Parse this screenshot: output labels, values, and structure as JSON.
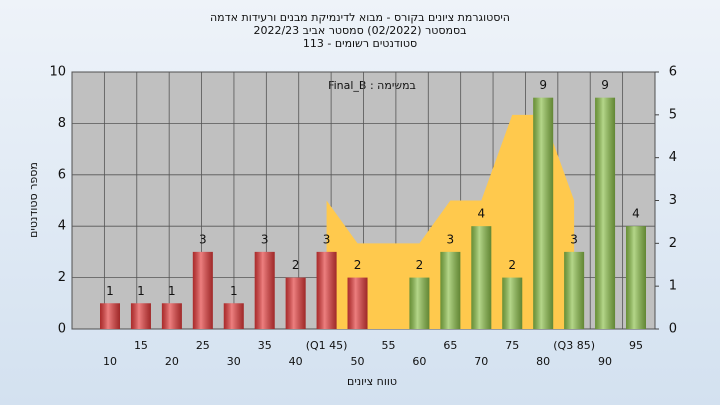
{
  "chart_data": {
    "type": "bar",
    "title": "היסטוגרמת ציונים בקורס - מבוא לדינמיקת מבנים ורעידות אדמה",
    "subtitle": [
      "בסמסטר  (02/2022)  סמסטר אביב 2022/23",
      "סטודנטים רשומים - 113"
    ],
    "annotation": "Final_B : במשימה",
    "x_label": "טווח ציונים",
    "y_label": "מספר סטודנטים",
    "categories": [
      "10",
      "15",
      "20",
      "25",
      "30",
      "35",
      "40",
      "(Q1 45)",
      "50",
      "55",
      "60",
      "65",
      "70",
      "75",
      "80",
      "(Q3 85)",
      "90",
      "95"
    ],
    "series": [
      {
        "values": [
          1,
          1,
          1,
          3,
          1,
          3,
          2,
          3,
          2,
          0,
          2,
          3,
          4,
          2,
          9,
          3,
          9,
          4
        ],
        "colors": [
          "#e33a3a",
          "#e33a3a",
          "#e33a3a",
          "#e33a3a",
          "#e33a3a",
          "#e33a3a",
          "#e33a3a",
          "#e33a3a",
          "#e33a3a",
          "#e33a3a",
          "#8cc04a",
          "#8cc04a",
          "#8cc04a",
          "#8cc04a",
          "#8cc04a",
          "#8cc04a",
          "#8cc04a",
          "#8cc04a"
        ]
      },
      {
        "type": "area",
        "axis": "y2",
        "color": "#ffc94d",
        "values": [
          null,
          null,
          null,
          null,
          null,
          null,
          null,
          3,
          2,
          2,
          2,
          3,
          3,
          5,
          5,
          3,
          null,
          null
        ]
      }
    ],
    "ylim": [
      0,
      10
    ],
    "yticks": [
      0,
      2,
      4,
      6,
      8,
      10
    ],
    "y2lim": [
      0,
      6
    ],
    "y2ticks": [
      0,
      1,
      2,
      3,
      4,
      5,
      6
    ],
    "grid": true
  }
}
